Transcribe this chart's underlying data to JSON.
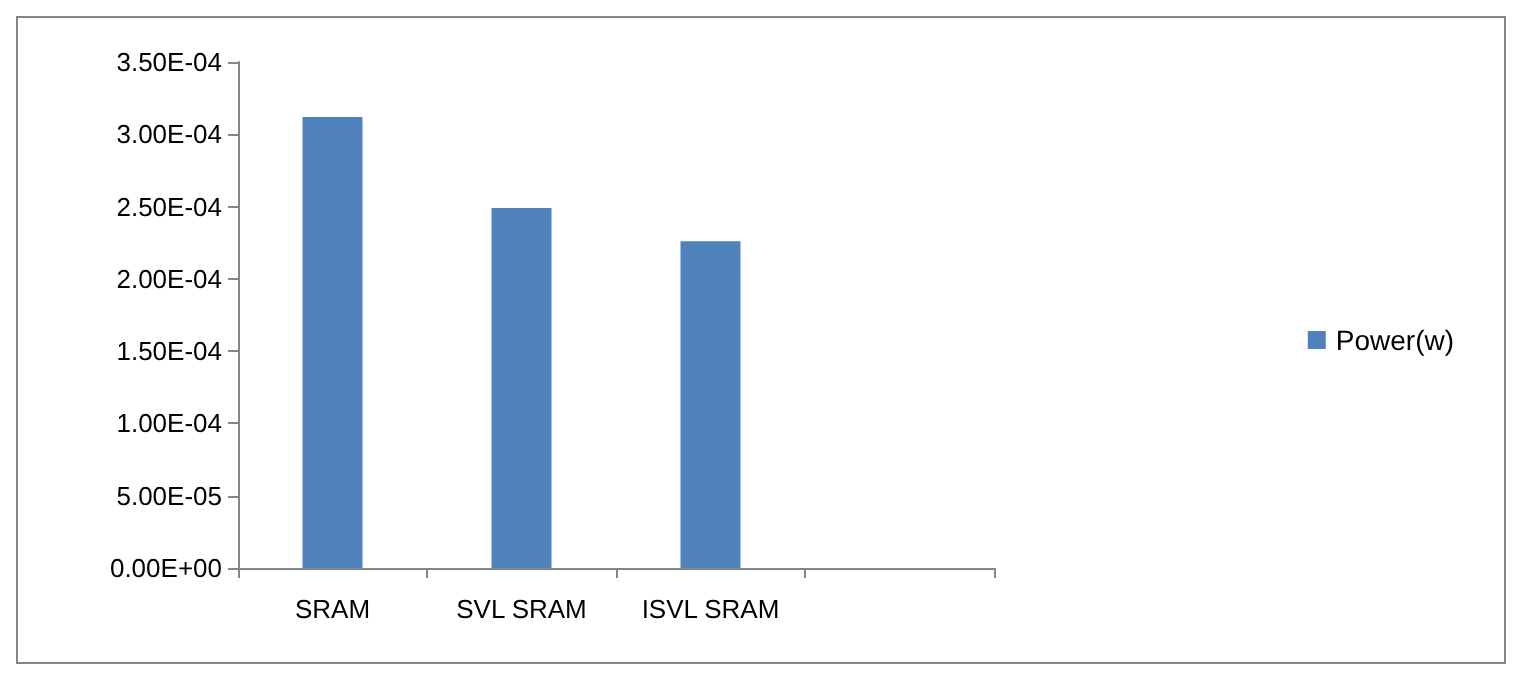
{
  "chart_data": {
    "type": "bar",
    "categories": [
      "SRAM",
      "SVL SRAM",
      "ISVL SRAM",
      null
    ],
    "series": [
      {
        "name": "Power(w)",
        "color": "#4f81bd",
        "values": [
          0.000312,
          0.000249,
          0.000226,
          null
        ]
      }
    ],
    "ylim": [
      0,
      0.00035
    ],
    "yticks": [
      {
        "value": 0,
        "label": "0.00E+00"
      },
      {
        "value": 5e-05,
        "label": "5.00E-05"
      },
      {
        "value": 0.0001,
        "label": "1.00E-04"
      },
      {
        "value": 0.00015,
        "label": "1.50E-04"
      },
      {
        "value": 0.0002,
        "label": "2.00E-04"
      },
      {
        "value": 0.00025,
        "label": "2.50E-04"
      },
      {
        "value": 0.0003,
        "label": "3.00E-04"
      },
      {
        "value": 0.00035,
        "label": "3.50E-04"
      }
    ],
    "grid": false,
    "legend": "right"
  }
}
